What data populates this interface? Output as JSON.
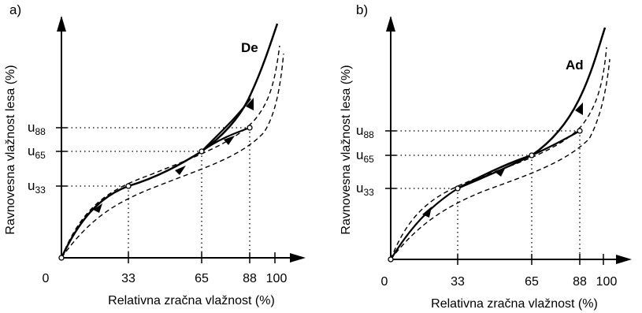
{
  "panels": [
    {
      "id": "a",
      "label": "a)",
      "curve_label": "De",
      "ylabel": "Ravnovesna vlažnost lesa (%)",
      "xlabel": "Relativna zračna vlažnost (%)",
      "xticks": [
        "0",
        "33",
        "65",
        "88",
        "100"
      ],
      "ylabels": [
        {
          "u": "u",
          "sub": "88"
        },
        {
          "u": "u",
          "sub": "65"
        },
        {
          "u": "u",
          "sub": "33"
        }
      ]
    },
    {
      "id": "b",
      "label": "b)",
      "curve_label": "Ad",
      "ylabel": "Ravnovesna vlažnost lesa (%)",
      "xlabel": "Relativna zračna vlažnost (%)",
      "xticks": [
        "0",
        "33",
        "65",
        "88",
        "100"
      ],
      "ylabels": [
        {
          "u": "u",
          "sub": "88"
        },
        {
          "u": "u",
          "sub": "65"
        },
        {
          "u": "u",
          "sub": "33"
        }
      ]
    }
  ]
}
